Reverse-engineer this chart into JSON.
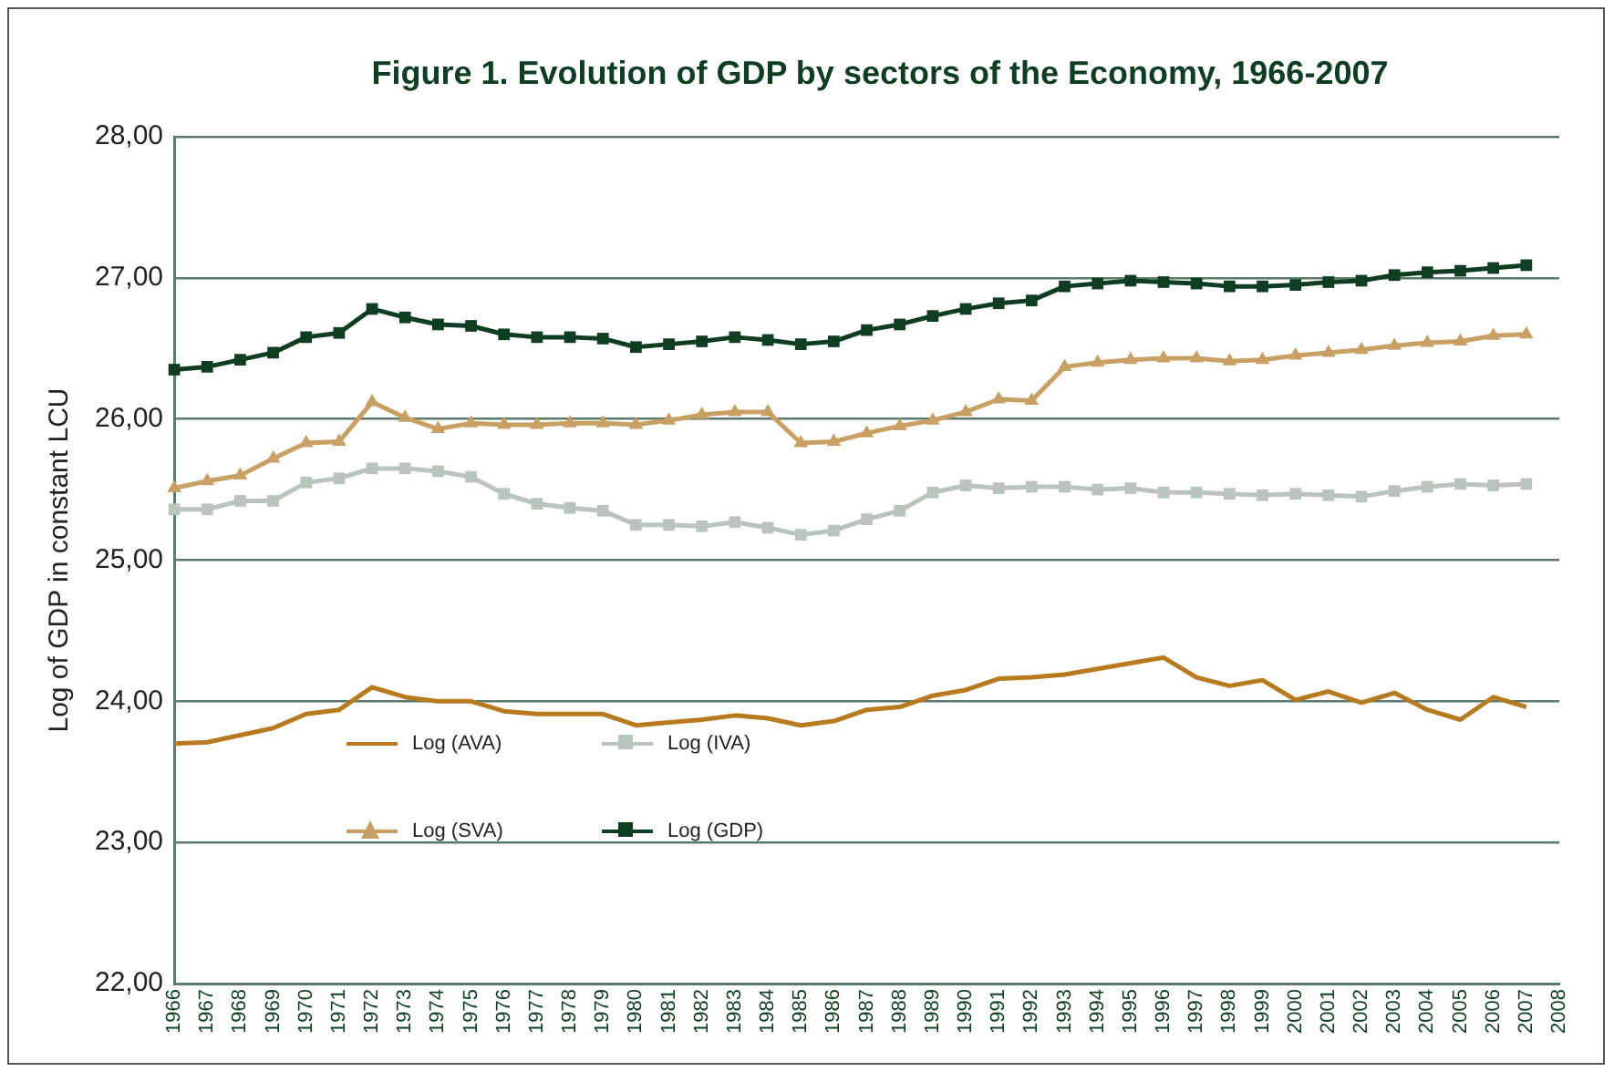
{
  "chart_data": {
    "type": "line",
    "title": "Figure 1. Evolution of GDP by sectors of the Economy, 1966-2007",
    "ylabel": "Log of GDP in constant LCU",
    "categories": [
      "1966",
      "1967",
      "1968",
      "1969",
      "1970",
      "1971",
      "1972",
      "1973",
      "1974",
      "1975",
      "1976",
      "1977",
      "1978",
      "1979",
      "1980",
      "1981",
      "1982",
      "1983",
      "1984",
      "1985",
      "1986",
      "1987",
      "1988",
      "1989",
      "1990",
      "1991",
      "1992",
      "1993",
      "1994",
      "1995",
      "1996",
      "1997",
      "1998",
      "1999",
      "2000",
      "2001",
      "2002",
      "2003",
      "2004",
      "2005",
      "2006",
      "2007",
      "2008"
    ],
    "series": [
      {
        "name": "Log (AVA)",
        "color": "#b87a1e",
        "marker": "none",
        "values": [
          23.7,
          23.71,
          23.76,
          23.81,
          23.91,
          23.94,
          24.1,
          24.03,
          24.0,
          24.0,
          23.93,
          23.91,
          23.91,
          23.91,
          23.83,
          23.85,
          23.87,
          23.9,
          23.88,
          23.83,
          23.86,
          23.94,
          23.96,
          24.04,
          24.08,
          24.16,
          24.17,
          24.19,
          24.23,
          24.27,
          24.31,
          24.17,
          24.11,
          24.15,
          24.01,
          24.07,
          23.99,
          24.06,
          23.94,
          23.87,
          24.03,
          23.96,
          null
        ]
      },
      {
        "name": "Log (IVA)",
        "color": "#b8c4bc",
        "marker": "square",
        "values": [
          25.36,
          25.36,
          25.42,
          25.42,
          25.55,
          25.58,
          25.65,
          25.65,
          25.63,
          25.59,
          25.47,
          25.4,
          25.37,
          25.35,
          25.25,
          25.25,
          25.24,
          25.27,
          25.23,
          25.18,
          25.21,
          25.29,
          25.35,
          25.48,
          25.53,
          25.51,
          25.52,
          25.52,
          25.5,
          25.51,
          25.48,
          25.48,
          25.47,
          25.46,
          25.47,
          25.46,
          25.45,
          25.49,
          25.52,
          25.54,
          25.53,
          25.54,
          null
        ]
      },
      {
        "name": "Log (SVA)",
        "color": "#c9a063",
        "marker": "triangle",
        "values": [
          25.51,
          25.56,
          25.6,
          25.72,
          25.83,
          25.84,
          26.12,
          26.01,
          25.93,
          25.97,
          25.96,
          25.96,
          25.97,
          25.97,
          25.96,
          25.99,
          26.03,
          26.05,
          26.05,
          25.83,
          25.84,
          25.9,
          25.95,
          25.99,
          26.05,
          26.14,
          26.13,
          26.37,
          26.4,
          26.42,
          26.43,
          26.43,
          26.41,
          26.42,
          26.45,
          26.47,
          26.49,
          26.52,
          26.54,
          26.55,
          26.59,
          26.6,
          null
        ]
      },
      {
        "name": "Log (GDP)",
        "color": "#0e3d22",
        "marker": "square",
        "values": [
          26.35,
          26.37,
          26.42,
          26.47,
          26.58,
          26.61,
          26.78,
          26.72,
          26.67,
          26.66,
          26.6,
          26.58,
          26.58,
          26.57,
          26.51,
          26.53,
          26.55,
          26.58,
          26.56,
          26.53,
          26.55,
          26.63,
          26.67,
          26.73,
          26.78,
          26.82,
          26.84,
          26.94,
          26.96,
          26.98,
          26.97,
          26.96,
          26.94,
          26.94,
          26.95,
          26.97,
          26.98,
          27.02,
          27.04,
          27.05,
          27.07,
          27.09,
          null
        ]
      }
    ],
    "ylim": [
      22,
      28
    ],
    "yticks": [
      {
        "value": 22,
        "label": "22,00"
      },
      {
        "value": 23,
        "label": "23,00"
      },
      {
        "value": 24,
        "label": "24,00"
      },
      {
        "value": 25,
        "label": "25,00"
      },
      {
        "value": 26,
        "label": "26,00"
      },
      {
        "value": 27,
        "label": "27,00"
      },
      {
        "value": 28,
        "label": "28,00"
      }
    ],
    "grid": "y",
    "legend": "bottom left",
    "line_style": "solid"
  }
}
